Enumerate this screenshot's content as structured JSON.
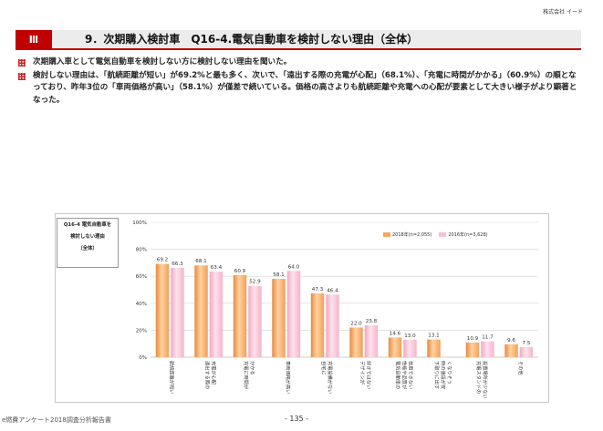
{
  "header": {
    "company": "株式会社 イード",
    "section_mark": "Ⅲ",
    "title": "9．次期購入検討車　Q16-4.電気自動車を検討しない理由（全体）"
  },
  "bullets": [
    "次期購入車として電気自動車を検討しない方に検討しない理由を聞いた。",
    "検討しない理由は、「航続距離が短い」が69.2%と最も多く、次いで、「遠出する際の充電が心配」（68.1%）、「充電に時間がかかる」（60.9%）の順となっており、昨年3位の「車両価格が高い」（58.1%）が僅差で続いている。価格の高さよりも航続距離や充電への心配が要素として大きい様子がより顕著となった。"
  ],
  "question_box": {
    "line1": "Q16-4 電気自動車を",
    "line2": "検討しない理由",
    "line3": "（全体）"
  },
  "chart_data": {
    "type": "bar",
    "ylim": [
      0,
      100
    ],
    "yticks": [
      "0%",
      "20%",
      "40%",
      "60%",
      "80%",
      "100%"
    ],
    "categories": [
      "航続距離が短い",
      "遠出する際の充電が心配",
      "充電に時間がかかる",
      "車両価格が高い",
      "自宅に充電設備がない",
      "デザインが好きではない",
      "電気自動車の性能や品質が信用できない",
      "下取りに出す時の値段が安くなりそう",
      "充電スタンドの設置場所が少ない",
      "その他"
    ],
    "category_lines": [
      [
        "航続距離が短い"
      ],
      [
        "遠出する際の",
        "充電が心配"
      ],
      [
        "充電に時間が",
        "かかる"
      ],
      [
        "車両価格が高い"
      ],
      [
        "自宅に",
        "充電設備がない"
      ],
      [
        "デザインが",
        "好きではない"
      ],
      [
        "電気自動車の",
        "性能や品質が",
        "信用できない"
      ],
      [
        "下取りに出す",
        "時の値段が安",
        "くなりそう"
      ],
      [
        "充電スタンドの",
        "設置場所が少ない"
      ],
      [
        "その他"
      ]
    ],
    "series": [
      {
        "name": "2018年(n=2,055)",
        "color": "#f5a860",
        "values": [
          69.2,
          68.1,
          60.9,
          58.1,
          47.3,
          22.0,
          14.6,
          13.1,
          10.9,
          9.6
        ]
      },
      {
        "name": "2016年(n=3,628)",
        "color": "#f7bfd4",
        "values": [
          66.3,
          63.4,
          52.9,
          64.0,
          46.4,
          23.8,
          13.0,
          null,
          11.7,
          7.5
        ]
      }
    ],
    "data_labels": [
      [
        "69.2",
        "68.1",
        "60.9",
        "58.1",
        "47.3",
        "22.0",
        "14.6",
        "13.1",
        "10.9",
        "9.6"
      ],
      [
        "66.3",
        "63.4",
        "52.9",
        "64.0",
        "46.4",
        "23.8",
        "13.0",
        "",
        "11.7",
        "7.5"
      ]
    ]
  },
  "footer": {
    "left": "e燃費アンケート2018調査分析報告書",
    "page": "- 135 -"
  }
}
